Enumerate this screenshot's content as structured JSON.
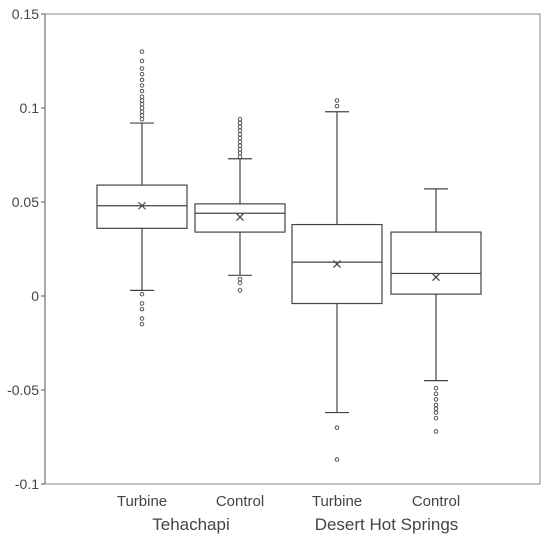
{
  "chart_data": {
    "type": "box",
    "title": "",
    "xlabel": "",
    "ylabel": "",
    "ylim": [
      -0.1,
      0.15
    ],
    "yticks": [
      {
        "value": -0.1,
        "label": "-0.1"
      },
      {
        "value": -0.05,
        "label": "-0.05"
      },
      {
        "value": 0,
        "label": "0"
      },
      {
        "value": 0.05,
        "label": "0.05"
      },
      {
        "value": 0.1,
        "label": "0.1"
      },
      {
        "value": 0.15,
        "label": "0.15"
      }
    ],
    "grid": false,
    "colors": {
      "stroke": "#444444",
      "axis": "#555555",
      "frame": "#888888",
      "text": "#444444"
    },
    "groups": [
      {
        "label": "Tehachapi",
        "categories": [
          "Turbine",
          "Control"
        ]
      },
      {
        "label": "Desert Hot Springs",
        "categories": [
          "Turbine",
          "Control"
        ]
      }
    ],
    "boxes": [
      {
        "group": "Tehachapi",
        "category": "Turbine",
        "whisker_low": 0.003,
        "q1": 0.036,
        "median": 0.048,
        "q3": 0.059,
        "whisker_high": 0.092,
        "mean": 0.048,
        "outliers": [
          0.13,
          0.125,
          0.121,
          0.118,
          0.115,
          0.112,
          0.109,
          0.106,
          0.104,
          0.102,
          0.1,
          0.098,
          0.096,
          0.094,
          0.001,
          -0.004,
          -0.007,
          -0.012,
          -0.015
        ]
      },
      {
        "group": "Tehachapi",
        "category": "Control",
        "whisker_low": 0.011,
        "q1": 0.034,
        "median": 0.044,
        "q3": 0.049,
        "whisker_high": 0.073,
        "mean": 0.042,
        "outliers": [
          0.094,
          0.092,
          0.09,
          0.088,
          0.086,
          0.084,
          0.082,
          0.08,
          0.078,
          0.076,
          0.074,
          0.009,
          0.007,
          0.003
        ]
      },
      {
        "group": "Desert Hot Springs",
        "category": "Turbine",
        "whisker_low": -0.062,
        "q1": -0.004,
        "median": 0.018,
        "q3": 0.038,
        "whisker_high": 0.098,
        "mean": 0.017,
        "outliers": [
          0.104,
          0.101,
          -0.07,
          -0.087
        ]
      },
      {
        "group": "Desert Hot Springs",
        "category": "Control",
        "whisker_low": -0.045,
        "q1": 0.001,
        "median": 0.012,
        "q3": 0.034,
        "whisker_high": 0.057,
        "mean": 0.01,
        "outliers": [
          -0.049,
          -0.052,
          -0.055,
          -0.058,
          -0.06,
          -0.062,
          -0.065,
          -0.072
        ]
      }
    ]
  }
}
